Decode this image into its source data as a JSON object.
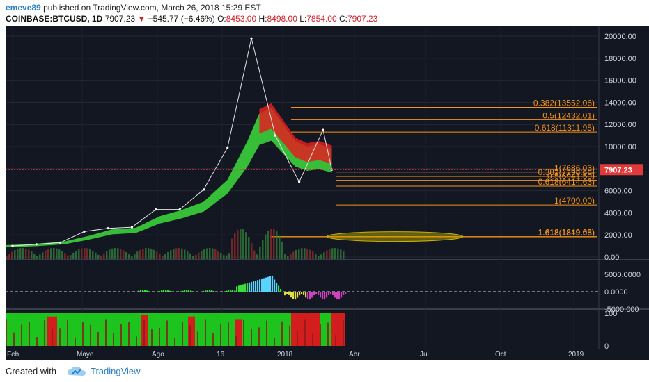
{
  "header": {
    "author": "emeve89",
    "published": "published on TradingView.com, March 26, 2018 15:29 EST",
    "symbol": "COINBASE:BTCUSD, 1D",
    "last": "7907.23",
    "down_arrow": "▼",
    "change": "−545.77 (−6.46%)",
    "o_label": "O:",
    "o_value": "8453.00",
    "h_label": "H:",
    "h_value": "8498.00",
    "l_label": "L:",
    "l_value": "7854.00",
    "c_label": "C:",
    "c_value": "7907.23"
  },
  "footer": {
    "created_with": "Created with",
    "brand": "TradingView",
    "brand_icon": "tradingview-cloud-icon"
  },
  "colors": {
    "background": "#131722",
    "fib_line": "#f7931a",
    "price_label_bg": "#e03a3a",
    "ribbon_up": "#3ddc3d",
    "ribbon_down": "#e02020",
    "ellipse": "#c8b400"
  },
  "chart_data": [
    {
      "type": "line",
      "panel": "price",
      "title": "COINBASE:BTCUSD, 1D",
      "y_ticks": [
        "20000.00",
        "18000.00",
        "16000.00",
        "14000.00",
        "12000.00",
        "10000.00",
        "8000.00",
        "6000.00",
        "4000.00",
        "2000.00",
        "0.00"
      ],
      "x_ticks": [
        "Feb",
        "Mayo",
        "Ago",
        "16",
        "2018",
        "Abr",
        "Jul",
        "Oct",
        "2019"
      ],
      "ylim": [
        0,
        20500
      ],
      "last_price_label": "7907.23",
      "price_series": {
        "x": [
          "2017-02",
          "2017-03",
          "2017-04",
          "2017-05",
          "2017-06",
          "2017-07",
          "2017-08",
          "2017-09",
          "2017-10",
          "2017-11",
          "2017-12",
          "2018-01",
          "2018-02",
          "2018-03",
          "2018-03-26"
        ],
        "y": [
          1000,
          1150,
          1300,
          2300,
          2600,
          2700,
          4300,
          4300,
          6100,
          9900,
          19800,
          11000,
          6800,
          11500,
          7907
        ]
      },
      "fib_levels": [
        {
          "label": "0.382(13552.06)",
          "value": 13552.06
        },
        {
          "label": "0.5(12432.01)",
          "value": 12432.01
        },
        {
          "label": "0.618(11311.95)",
          "value": 11311.95
        },
        {
          "label": "1(7686.03)",
          "value": 7686.03
        },
        {
          "label": "0.382(7298.68)",
          "value": 7298.68
        },
        {
          "label": "0.5(6941.50)",
          "value": 6941.5
        },
        {
          "label": "0.618(6414.63)",
          "value": 6414.63
        },
        {
          "label": "1(4709.00)",
          "value": 4709.0
        },
        {
          "label": "1.618(1849.63)",
          "value": 1849.63
        },
        {
          "label": "1.618(1819.98)",
          "value": 1819.98
        }
      ],
      "highlight": "ellipse"
    },
    {
      "type": "bar",
      "panel": "oscillator",
      "y_ticks": [
        "5000.0000",
        "0.0000",
        "-5000.000"
      ],
      "ylim": [
        -5000,
        5000
      ]
    },
    {
      "type": "bar",
      "panel": "indicator",
      "y_ticks": [
        "100",
        "0"
      ],
      "ylim": [
        0,
        100
      ]
    }
  ]
}
